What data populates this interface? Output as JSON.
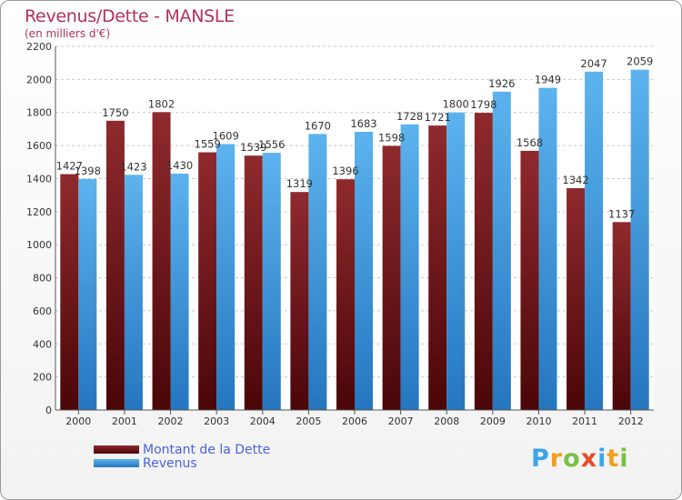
{
  "chart_data": {
    "type": "bar",
    "title": "Revenus/Dette - MANSLE",
    "subtitle": "(en milliers d'€)",
    "categories": [
      "2000",
      "2001",
      "2002",
      "2003",
      "2004",
      "2005",
      "2006",
      "2007",
      "2008",
      "2009",
      "2010",
      "2011",
      "2012"
    ],
    "series": [
      {
        "name": "Montant de la Dette",
        "color": "#7a1a1e",
        "values": [
          1427,
          1750,
          1802,
          1559,
          1539,
          1319,
          1396,
          1598,
          1721,
          1798,
          1568,
          1342,
          1137
        ]
      },
      {
        "name": "Revenus",
        "color": "#3d9be0",
        "values": [
          1398,
          1423,
          1430,
          1609,
          1556,
          1670,
          1683,
          1728,
          1800,
          1926,
          1949,
          2047,
          2059
        ]
      }
    ],
    "yticks": [
      0,
      200,
      400,
      600,
      800,
      1000,
      1200,
      1400,
      1600,
      1800,
      2000,
      2200
    ],
    "ylim": [
      0,
      2200
    ],
    "grid": true,
    "legend_position": "bottom-left"
  },
  "logo": {
    "text": "Proxiti",
    "letters": [
      "P",
      "r",
      "o",
      "x",
      "i",
      "t",
      "i"
    ],
    "colors": [
      "#3aa6e8",
      "#f0a020",
      "#7ac143",
      "#e84a2a",
      "#3aa6e8",
      "#f0a020",
      "#7ac143"
    ]
  }
}
